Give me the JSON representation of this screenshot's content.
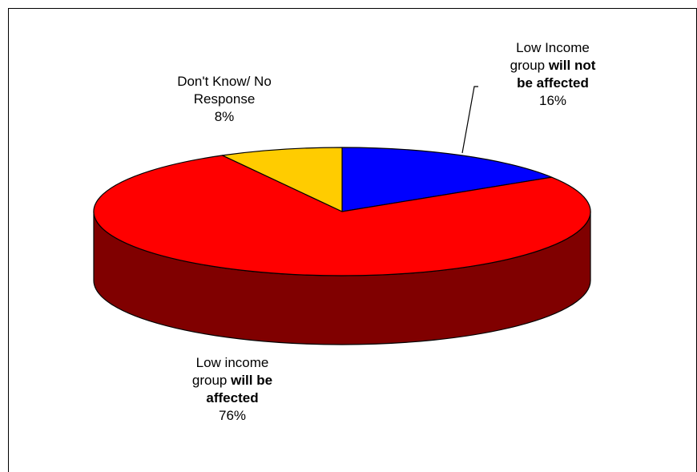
{
  "chart_data": {
    "type": "pie",
    "style": "3d",
    "title": "",
    "slices": [
      {
        "id": "not-affected",
        "parts": [
          "Low Income",
          "group ",
          "will not",
          "be affected"
        ],
        "value": 16,
        "value_label": "16%",
        "color": "#0000ff",
        "side_color": "#000080"
      },
      {
        "id": "affected",
        "parts": [
          "Low income",
          "group ",
          "will be",
          "affected"
        ],
        "value": 76,
        "value_label": "76%",
        "color": "#ff0000",
        "side_color": "#800000"
      },
      {
        "id": "dont-know",
        "parts": [
          "Don't Know/ No",
          "Response"
        ],
        "value": 8,
        "value_label": "8%",
        "color": "#ffcc00",
        "side_color": "#806600"
      }
    ]
  }
}
